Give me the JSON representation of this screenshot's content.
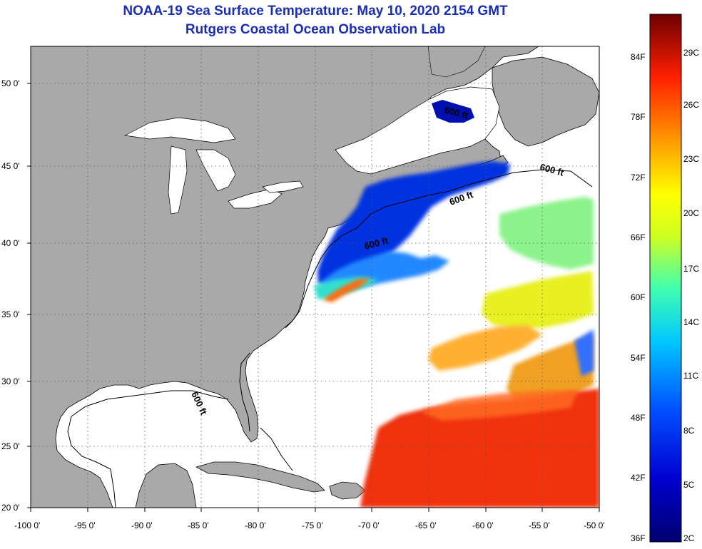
{
  "title_line1": "NOAA-19 Sea Surface Temperature:  May 10, 2020 2154 GMT",
  "title_line2": "Rutgers Coastal Ocean Observation Lab",
  "lat_labels": [
    "50 0'",
    "45 0'",
    "40 0'",
    "35 0'",
    "30 0'",
    "25 0'",
    "20 0'"
  ],
  "lon_labels": [
    "-100 0'",
    "-95 0'",
    "-90 0'",
    "-85 0'",
    "-80 0'",
    "-75 0'",
    "-70 0'",
    "-65 0'",
    "-60 0'",
    "-55 0'",
    "-50 0'"
  ],
  "isobath_labels": [
    "600 ft",
    "600 ft",
    "600 ft",
    "600 ft",
    "600 ft"
  ],
  "colorbar_f": [
    "84F",
    "78F",
    "72F",
    "66F",
    "60F",
    "54F",
    "48F",
    "42F",
    "36F"
  ],
  "colorbar_c": [
    "29C",
    "26C",
    "23C",
    "20C",
    "17C",
    "14C",
    "11C",
    "8C",
    "5C",
    "2C"
  ],
  "colors": {
    "title": "#1a2fb5",
    "land": "#a9a9a9",
    "water_nodata": "#ffffff",
    "grid": "#555555"
  }
}
